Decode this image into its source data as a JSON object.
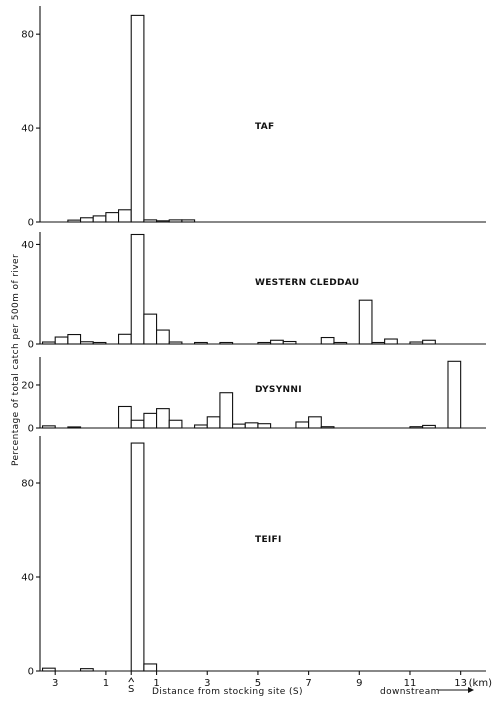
{
  "chart_data": {
    "type": "bar",
    "ylabel": "Percentage of total catch per 500m of river",
    "xlabel": "Distance from stocking site (S)",
    "downstream_label": "downstream",
    "x_unit_label": "(km)",
    "x_ticks": [
      {
        "label": "3",
        "pos": -3
      },
      {
        "label": "1",
        "pos": -1
      },
      {
        "label": "S",
        "pos": 0
      },
      {
        "label": "1",
        "pos": 1
      },
      {
        "label": "3",
        "pos": 3
      },
      {
        "label": "5",
        "pos": 5
      },
      {
        "label": "7",
        "pos": 7
      },
      {
        "label": "9",
        "pos": 9
      },
      {
        "label": "11",
        "pos": 11
      },
      {
        "label": "13",
        "pos": 13
      }
    ],
    "x_range": [
      -3.6,
      14.0
    ],
    "panels": [
      {
        "name": "TAF",
        "ylim": [
          0,
          92
        ],
        "yticks": [
          "0",
          "40",
          "80"
        ],
        "ytick_values": [
          0,
          40,
          80
        ],
        "bins": [
          {
            "x": -2.0,
            "value": 0.8
          },
          {
            "x": -1.5,
            "value": 1.8
          },
          {
            "x": -1.0,
            "value": 2.6
          },
          {
            "x": -0.5,
            "value": 4.0
          },
          {
            "x": 0.0,
            "value": 5.2
          },
          {
            "x": 0.5,
            "value": 88
          },
          {
            "x": 1.0,
            "value": 0.9
          },
          {
            "x": 1.5,
            "value": 0.5
          },
          {
            "x": 2.0,
            "value": 0.9
          },
          {
            "x": 2.5,
            "value": 0.9
          }
        ]
      },
      {
        "name": "WESTERN CLEDDAU",
        "ylim": [
          0,
          45
        ],
        "yticks": [
          "0",
          "40"
        ],
        "ytick_values": [
          0,
          40
        ],
        "bins": [
          {
            "x": -3.0,
            "value": 0.8
          },
          {
            "x": -2.5,
            "value": 2.8
          },
          {
            "x": -2.0,
            "value": 3.8
          },
          {
            "x": -1.5,
            "value": 0.9
          },
          {
            "x": -1.0,
            "value": 0.6
          },
          {
            "x": 0.0,
            "value": 3.9
          },
          {
            "x": 0.5,
            "value": 44
          },
          {
            "x": 1.0,
            "value": 12
          },
          {
            "x": 1.5,
            "value": 5.6
          },
          {
            "x": 2.0,
            "value": 0.8
          },
          {
            "x": 3.0,
            "value": 0.6
          },
          {
            "x": 4.0,
            "value": 0.6
          },
          {
            "x": 5.5,
            "value": 0.6
          },
          {
            "x": 6.0,
            "value": 1.5
          },
          {
            "x": 6.5,
            "value": 1.0
          },
          {
            "x": 8.0,
            "value": 2.6
          },
          {
            "x": 8.5,
            "value": 0.6
          },
          {
            "x": 9.5,
            "value": 17.6
          },
          {
            "x": 10.0,
            "value": 0.6
          },
          {
            "x": 10.5,
            "value": 2.0
          },
          {
            "x": 11.5,
            "value": 0.8
          },
          {
            "x": 12.0,
            "value": 1.5
          }
        ]
      },
      {
        "name": "DYSYNNI",
        "ylim": [
          0,
          33
        ],
        "yticks": [
          "0",
          "20"
        ],
        "ytick_values": [
          0,
          20
        ],
        "bins": [
          {
            "x": -3.0,
            "value": 1.0
          },
          {
            "x": -2.0,
            "value": 0.5
          },
          {
            "x": 0.0,
            "value": 10
          },
          {
            "x": 0.5,
            "value": 3.6
          },
          {
            "x": 1.0,
            "value": 6.8
          },
          {
            "x": 1.5,
            "value": 9.0
          },
          {
            "x": 2.0,
            "value": 3.6
          },
          {
            "x": 3.0,
            "value": 1.4
          },
          {
            "x": 3.5,
            "value": 5.2
          },
          {
            "x": 4.0,
            "value": 16.4
          },
          {
            "x": 4.5,
            "value": 1.8
          },
          {
            "x": 5.0,
            "value": 2.4
          },
          {
            "x": 5.5,
            "value": 2.0
          },
          {
            "x": 7.0,
            "value": 2.8
          },
          {
            "x": 7.5,
            "value": 5.2
          },
          {
            "x": 8.0,
            "value": 0.6
          },
          {
            "x": 11.5,
            "value": 0.6
          },
          {
            "x": 12.0,
            "value": 1.2
          },
          {
            "x": 13.0,
            "value": 31
          }
        ]
      },
      {
        "name": "TEIFI",
        "ylim": [
          0,
          100
        ],
        "yticks": [
          "0",
          "40",
          "80"
        ],
        "ytick_values": [
          0,
          40,
          80
        ],
        "bins": [
          {
            "x": -3.0,
            "value": 1.2
          },
          {
            "x": -1.5,
            "value": 1.0
          },
          {
            "x": 0.5,
            "value": 97
          },
          {
            "x": 1.0,
            "value": 3.0
          }
        ]
      }
    ]
  }
}
